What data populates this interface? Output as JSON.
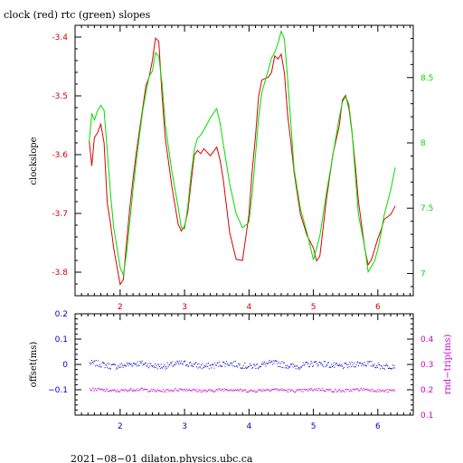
{
  "chart_data": [
    {
      "type": "line",
      "title": "clock (red) rtc (green) slopes",
      "ylabel": "clockslope",
      "xlim": [
        1.3,
        6.55
      ],
      "ylim": [
        -3.84,
        -3.38
      ],
      "y2lim": [
        6.83,
        8.9
      ],
      "x_ticks": [
        "2",
        "3",
        "4",
        "5",
        "6"
      ],
      "y_ticks": [
        "-3.4",
        "-3.5",
        "-3.6",
        "-3.7",
        "-3.8"
      ],
      "y2_ticks": [
        "7",
        "7.5",
        "8",
        "8.5"
      ],
      "colors": {
        "axis_x": "#cc0000",
        "axis_left": "#cc0000",
        "axis_right": "#00dd00"
      },
      "series": [
        {
          "color": "#dd0000",
          "axis": "left",
          "x": [
            1.52,
            1.56,
            1.6,
            1.65,
            1.7,
            1.75,
            1.8,
            1.85,
            1.9,
            2.0,
            2.05,
            2.1,
            2.15,
            2.2,
            2.25,
            2.3,
            2.35,
            2.4,
            2.45,
            2.5,
            2.55,
            2.6,
            2.65,
            2.7,
            2.8,
            2.9,
            2.95,
            3.0,
            3.05,
            3.1,
            3.15,
            3.2,
            3.25,
            3.3,
            3.4,
            3.5,
            3.55,
            3.6,
            3.7,
            3.8,
            3.9,
            4.0,
            4.05,
            4.1,
            4.15,
            4.2,
            4.3,
            4.35,
            4.4,
            4.45,
            4.5,
            4.55,
            4.6,
            4.65,
            4.7,
            4.8,
            4.9,
            5.0,
            5.05,
            5.1,
            5.2,
            5.3,
            5.4,
            5.45,
            5.5,
            5.55,
            5.6,
            5.65,
            5.7,
            5.8,
            5.85,
            5.9,
            5.95,
            6.0,
            6.05,
            6.1,
            6.2,
            6.27
          ],
          "values": [
            -3.58,
            -3.62,
            -3.57,
            -3.56,
            -3.55,
            -3.58,
            -3.68,
            -3.72,
            -3.76,
            -3.82,
            -3.81,
            -3.75,
            -3.69,
            -3.64,
            -3.6,
            -3.56,
            -3.52,
            -3.48,
            -3.47,
            -3.44,
            -3.4,
            -3.41,
            -3.5,
            -3.57,
            -3.65,
            -3.72,
            -3.73,
            -3.72,
            -3.7,
            -3.65,
            -3.6,
            -3.59,
            -3.6,
            -3.59,
            -3.6,
            -3.59,
            -3.61,
            -3.64,
            -3.73,
            -3.78,
            -3.78,
            -3.7,
            -3.63,
            -3.57,
            -3.5,
            -3.47,
            -3.47,
            -3.46,
            -3.43,
            -3.44,
            -3.43,
            -3.46,
            -3.53,
            -3.58,
            -3.63,
            -3.7,
            -3.74,
            -3.76,
            -3.78,
            -3.77,
            -3.68,
            -3.6,
            -3.55,
            -3.51,
            -3.5,
            -3.52,
            -3.56,
            -3.62,
            -3.68,
            -3.76,
            -3.79,
            -3.78,
            -3.76,
            -3.74,
            -3.73,
            -3.71,
            -3.7,
            -3.69
          ]
        },
        {
          "color": "#00dd00",
          "axis": "right",
          "x": [
            1.52,
            1.56,
            1.6,
            1.65,
            1.7,
            1.75,
            1.8,
            1.85,
            1.9,
            2.0,
            2.05,
            2.1,
            2.15,
            2.2,
            2.25,
            2.3,
            2.35,
            2.4,
            2.45,
            2.5,
            2.55,
            2.6,
            2.65,
            2.7,
            2.8,
            2.9,
            2.95,
            3.0,
            3.05,
            3.1,
            3.15,
            3.2,
            3.25,
            3.3,
            3.4,
            3.5,
            3.55,
            3.6,
            3.7,
            3.8,
            3.9,
            4.0,
            4.05,
            4.1,
            4.15,
            4.2,
            4.3,
            4.35,
            4.4,
            4.45,
            4.5,
            4.55,
            4.6,
            4.65,
            4.7,
            4.8,
            4.9,
            5.0,
            5.05,
            5.1,
            5.2,
            5.3,
            5.4,
            5.45,
            5.5,
            5.55,
            5.6,
            5.65,
            5.7,
            5.8,
            5.85,
            5.9,
            5.95,
            6.0,
            6.05,
            6.1,
            6.2,
            6.27
          ],
          "values": [
            8.0,
            8.22,
            8.18,
            8.26,
            8.28,
            8.25,
            7.95,
            7.6,
            7.35,
            7.05,
            7.0,
            7.15,
            7.4,
            7.65,
            7.85,
            8.05,
            8.25,
            8.4,
            8.5,
            8.55,
            8.7,
            8.65,
            8.45,
            8.15,
            7.8,
            7.5,
            7.35,
            7.35,
            7.5,
            7.75,
            7.95,
            8.05,
            8.05,
            8.1,
            8.2,
            8.25,
            8.15,
            8.0,
            7.7,
            7.45,
            7.35,
            7.4,
            7.6,
            7.9,
            8.2,
            8.4,
            8.55,
            8.65,
            8.7,
            8.75,
            8.85,
            8.8,
            8.5,
            8.15,
            7.8,
            7.5,
            7.3,
            7.1,
            7.2,
            7.3,
            7.6,
            7.9,
            8.2,
            8.3,
            8.35,
            8.3,
            8.1,
            7.75,
            7.45,
            7.2,
            7.0,
            7.05,
            7.1,
            7.2,
            7.3,
            7.45,
            7.65,
            7.8
          ]
        }
      ]
    },
    {
      "type": "scatter",
      "ylabel": "offset(ms)",
      "y2label": "rnd−trip(ms)",
      "xlim": [
        1.3,
        6.55
      ],
      "ylim": [
        -0.2,
        0.2
      ],
      "y2lim": [
        0.1,
        0.5
      ],
      "x_ticks": [
        "2",
        "3",
        "4",
        "5",
        "6"
      ],
      "y_ticks": [
        "0.2",
        "0.1",
        "0",
        "−0.1"
      ],
      "y2_ticks": [
        "0.4",
        "0.3",
        "0.2",
        "0.1"
      ],
      "colors": {
        "axis_x": "#0000cc",
        "axis_left": "#0000cc",
        "axis_right": "#cc00cc"
      },
      "series": [
        {
          "color": "#0000cc",
          "axis": "left",
          "marker": "dot",
          "baseline": 0.0,
          "x_range": [
            1.52,
            6.27
          ],
          "scatter": 0.012
        },
        {
          "color": "#cc00cc",
          "axis": "right",
          "marker": "dot",
          "baseline": 0.2,
          "x_range": [
            1.52,
            6.27
          ],
          "scatter": 0.006
        }
      ]
    }
  ],
  "footer": "2021−08−01 dilaton.physics.ubc.ca"
}
